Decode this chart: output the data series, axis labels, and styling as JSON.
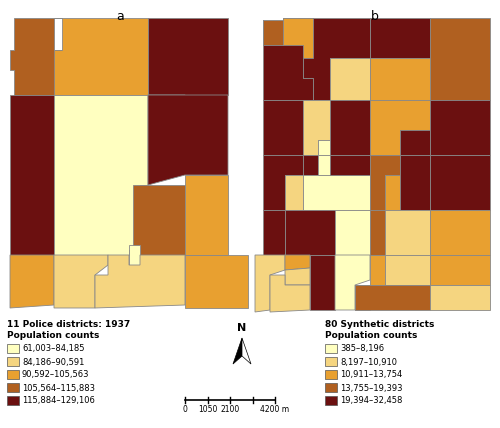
{
  "title_a": "a",
  "title_b": "b",
  "legend_a_title1": "11 Police districts: 1937",
  "legend_a_title2": "Population counts",
  "legend_b_title1": "80 Synthetic districts",
  "legend_b_title2": "Population counts",
  "legend_a_labels": [
    "61,003–84,185",
    "84,186–90,591",
    "90,592–105,563",
    "105,564–115,883",
    "115,884–129,106"
  ],
  "legend_b_labels": [
    "385–8,196",
    "8,197–10,910",
    "10,911–13,754",
    "13,755–19,393",
    "19,394–32,458"
  ],
  "colors": [
    "#FFFFC0",
    "#F5D580",
    "#E8A030",
    "#B06020",
    "#6B1010"
  ],
  "north_label": "N",
  "background_color": "#FFFFFF",
  "scalebar_ticks": [
    "0",
    "1050",
    "2100",
    "",
    "4200 m"
  ]
}
